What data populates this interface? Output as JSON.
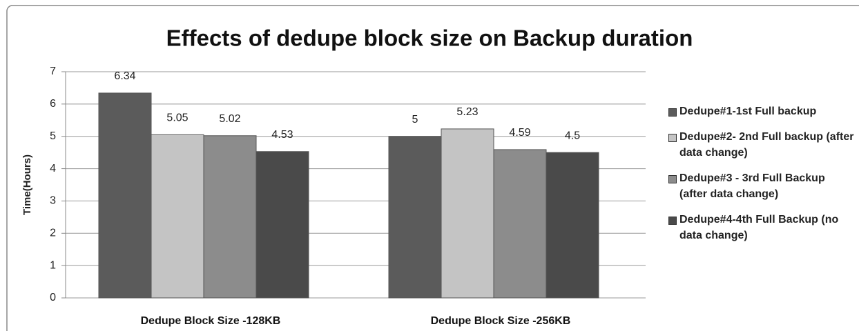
{
  "chart_data": {
    "type": "bar",
    "title": "Effects of dedupe block size on Backup duration",
    "y_label": "Time(Hours)",
    "categories": [
      "Dedupe Block Size -128KB",
      "Dedupe Block Size -256KB"
    ],
    "series": [
      {
        "name": "Dedupe#1-1st Full backup",
        "color": "#5b5b5b",
        "values": [
          6.34,
          5
        ]
      },
      {
        "name": "Dedupe#2- 2nd Full backup (after data change)",
        "color": "#c4c4c4",
        "values": [
          5.05,
          5.23
        ]
      },
      {
        "name": "Dedupe#3 - 3rd Full Backup (after data change)",
        "color": "#8c8c8c",
        "values": [
          5.02,
          4.59
        ]
      },
      {
        "name": "Dedupe#4-4th Full Backup (no data change)",
        "color": "#4a4a4a",
        "values": [
          4.53,
          4.5
        ]
      }
    ],
    "ylim": [
      0,
      7
    ],
    "yticks": [
      0,
      1,
      2,
      3,
      4,
      5,
      6,
      7
    ],
    "grid": true,
    "legend": "right"
  }
}
